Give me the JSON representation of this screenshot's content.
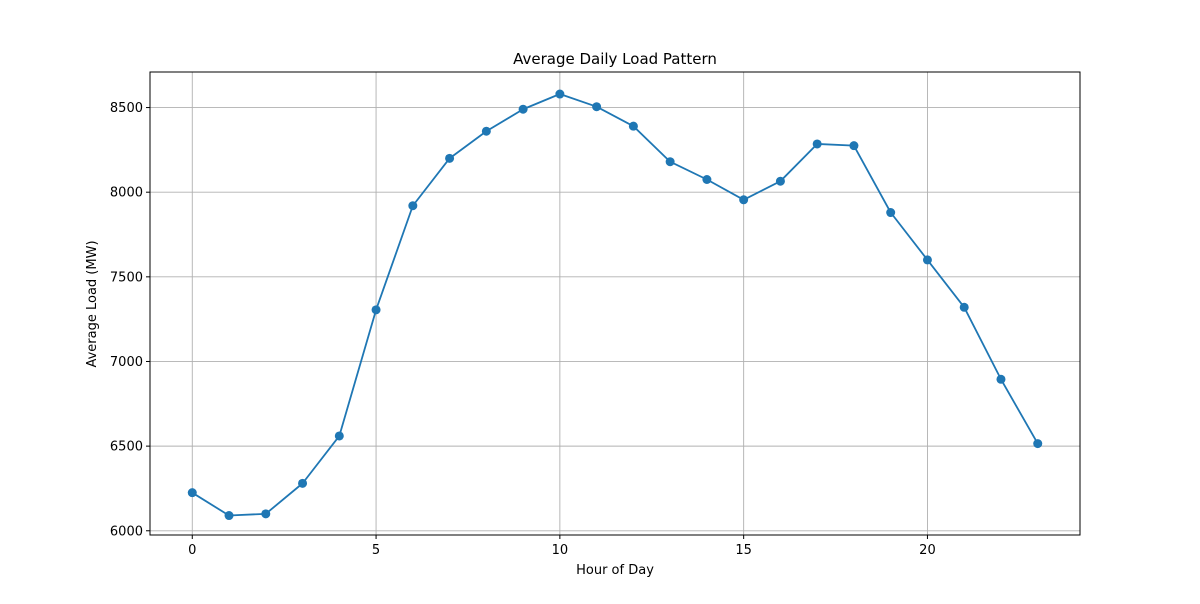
{
  "chart_data": {
    "type": "line",
    "title": "Average Daily Load Pattern",
    "xlabel": "Hour of Day",
    "ylabel": "Average Load (MW)",
    "xlim": [
      -1.15,
      24.15
    ],
    "ylim": [
      5975,
      8710
    ],
    "xticks": [
      0,
      5,
      10,
      15,
      20
    ],
    "yticks": [
      6000,
      6500,
      7000,
      7500,
      8000,
      8500
    ],
    "grid": true,
    "legend": "none",
    "series": [
      {
        "color": "#1f77b4",
        "marker": "circle",
        "x": [
          0,
          1,
          2,
          3,
          4,
          5,
          6,
          7,
          8,
          9,
          10,
          11,
          12,
          13,
          14,
          15,
          16,
          17,
          18,
          19,
          20,
          21,
          22,
          23
        ],
        "values": [
          6225,
          6090,
          6100,
          6280,
          6560,
          7305,
          7920,
          8200,
          8360,
          8490,
          8580,
          8505,
          8390,
          8180,
          8075,
          7955,
          8065,
          8285,
          8275,
          7880,
          7600,
          7320,
          6895,
          6515
        ]
      }
    ]
  }
}
